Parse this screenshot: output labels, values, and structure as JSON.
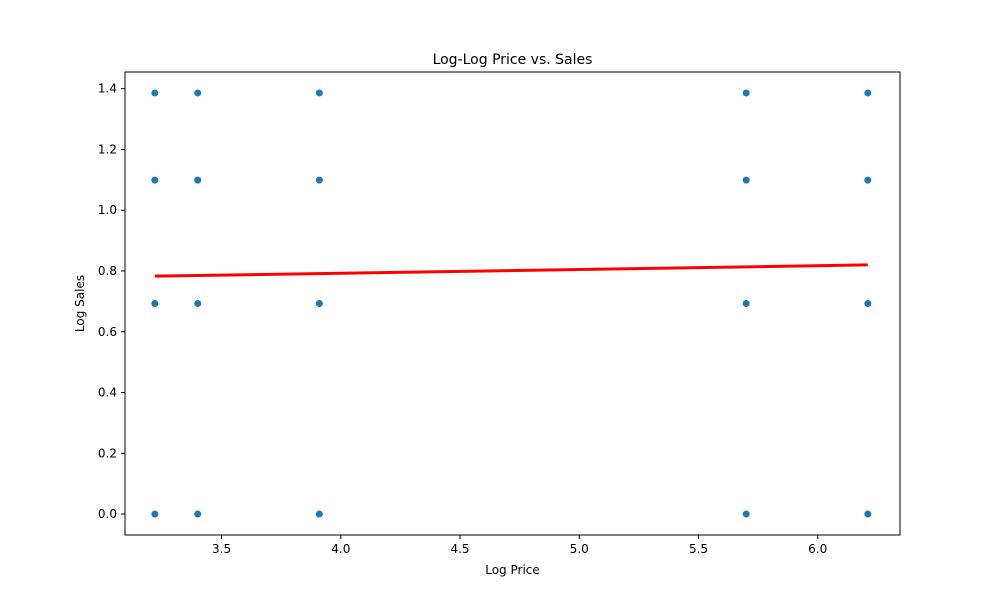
{
  "chart_data": {
    "type": "scatter",
    "title": "Log-Log Price vs. Sales",
    "xlabel": "Log Price",
    "ylabel": "Log Sales",
    "xlim": [
      3.095,
      6.345
    ],
    "ylim": [
      -0.069,
      1.455
    ],
    "x_ticks": [
      3.5,
      4.0,
      4.5,
      5.0,
      5.5,
      6.0
    ],
    "x_tick_labels": [
      "3.5",
      "4.0",
      "4.5",
      "5.0",
      "5.5",
      "6.0"
    ],
    "y_ticks": [
      0.0,
      0.2,
      0.4,
      0.6,
      0.8,
      1.0,
      1.2,
      1.4
    ],
    "y_tick_labels": [
      "0.0",
      "0.2",
      "0.4",
      "0.6",
      "0.8",
      "1.0",
      "1.2",
      "1.4"
    ],
    "grid": false,
    "series": [
      {
        "type": "scatter",
        "color": "#1f77b4",
        "points": [
          {
            "x": 3.22,
            "y": 1.386
          },
          {
            "x": 3.22,
            "y": 1.099
          },
          {
            "x": 3.22,
            "y": 0.693
          },
          {
            "x": 3.22,
            "y": 0.0
          },
          {
            "x": 3.4,
            "y": 1.386
          },
          {
            "x": 3.4,
            "y": 1.099
          },
          {
            "x": 3.4,
            "y": 0.693
          },
          {
            "x": 3.4,
            "y": 0.0
          },
          {
            "x": 3.91,
            "y": 1.386
          },
          {
            "x": 3.91,
            "y": 1.099
          },
          {
            "x": 3.91,
            "y": 0.693
          },
          {
            "x": 3.91,
            "y": 0.0
          },
          {
            "x": 5.7,
            "y": 1.386
          },
          {
            "x": 5.7,
            "y": 1.099
          },
          {
            "x": 5.7,
            "y": 0.693
          },
          {
            "x": 5.7,
            "y": 0.0
          },
          {
            "x": 6.21,
            "y": 1.386
          },
          {
            "x": 6.21,
            "y": 1.099
          },
          {
            "x": 6.21,
            "y": 0.693
          },
          {
            "x": 6.21,
            "y": 0.0
          }
        ]
      },
      {
        "type": "line",
        "color": "#ff0000",
        "x": [
          3.22,
          6.21
        ],
        "y": [
          0.783,
          0.82
        ]
      }
    ]
  }
}
